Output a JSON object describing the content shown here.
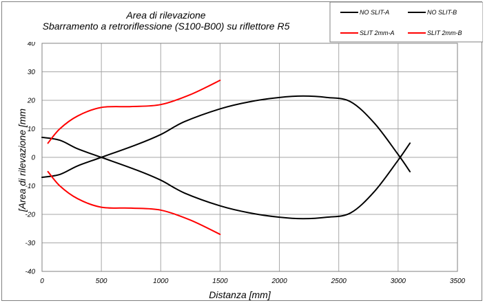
{
  "chart_data": {
    "type": "line",
    "title": "Area di rilevazione",
    "subtitle": "Sbarramento a retroriflessione (S100-B00) su riflettore R5",
    "xlabel": "Distanza [mm]",
    "ylabel": "[Area di rilevazione [mm",
    "xlim": [
      0,
      3500
    ],
    "ylim": [
      -40,
      40
    ],
    "x_ticks": [
      "0",
      "500",
      "1000",
      "1500",
      "2000",
      "2500",
      "3000",
      "3500"
    ],
    "y_ticks": [
      "40",
      "30",
      "20",
      "10",
      "0",
      "-10",
      "-20",
      "-30",
      "-40"
    ],
    "grid": true,
    "legend_position": "top-right",
    "series": [
      {
        "name": "NO SLIT-A",
        "color": "#000000",
        "points": [
          [
            0,
            7
          ],
          [
            150,
            6
          ],
          [
            300,
            3
          ],
          [
            500,
            0
          ],
          [
            800,
            -4.5
          ],
          [
            1000,
            -8
          ],
          [
            1200,
            -12.5
          ],
          [
            1500,
            -17
          ],
          [
            1750,
            -19.5
          ],
          [
            2000,
            -21
          ],
          [
            2200,
            -21.5
          ],
          [
            2400,
            -21
          ],
          [
            2600,
            -19.5
          ],
          [
            2800,
            -12
          ],
          [
            3000,
            -1
          ],
          [
            3100,
            5
          ]
        ]
      },
      {
        "name": "NO SLIT-B",
        "color": "#000000",
        "points": [
          [
            0,
            -7
          ],
          [
            150,
            -6
          ],
          [
            300,
            -3
          ],
          [
            500,
            0
          ],
          [
            800,
            4.5
          ],
          [
            1000,
            8
          ],
          [
            1200,
            12.5
          ],
          [
            1500,
            17
          ],
          [
            1750,
            19.5
          ],
          [
            2000,
            21
          ],
          [
            2200,
            21.5
          ],
          [
            2400,
            21
          ],
          [
            2600,
            19.5
          ],
          [
            2800,
            12
          ],
          [
            3000,
            1
          ],
          [
            3100,
            -5
          ]
        ]
      },
      {
        "name": "SLIT 2mm-A",
        "color": "#ff0000",
        "points": [
          [
            50,
            5
          ],
          [
            150,
            10
          ],
          [
            300,
            14.5
          ],
          [
            500,
            17.5
          ],
          [
            750,
            17.8
          ],
          [
            1000,
            18.5
          ],
          [
            1250,
            22
          ],
          [
            1500,
            27
          ]
        ]
      },
      {
        "name": "SLIT 2mm-B",
        "color": "#ff0000",
        "points": [
          [
            50,
            -5
          ],
          [
            150,
            -10
          ],
          [
            300,
            -14.5
          ],
          [
            500,
            -17.5
          ],
          [
            750,
            -17.8
          ],
          [
            1000,
            -18.5
          ],
          [
            1250,
            -22
          ],
          [
            1500,
            -27
          ]
        ]
      }
    ]
  }
}
